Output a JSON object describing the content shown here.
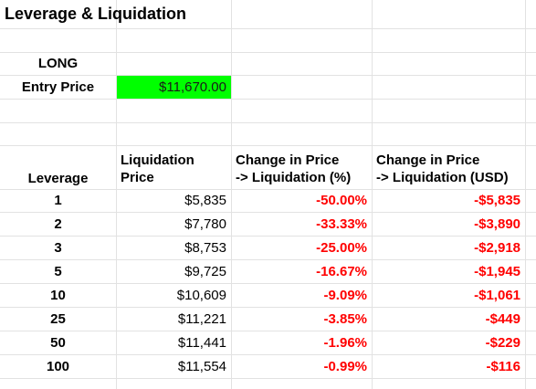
{
  "sheet": {
    "title": "Leverage & Liquidation",
    "position_label": "LONG",
    "entry_label": "Entry Price",
    "entry_value": "$11,670.00",
    "entry_highlight_color": "#00ff00",
    "negative_color": "#ff0000"
  },
  "headers": {
    "leverage": "Leverage",
    "liq_price_line1": "Liquidation",
    "liq_price_line2": "Price",
    "change_pct_line1": "Change in Price",
    "change_pct_line2": "-> Liquidation (%)",
    "change_usd_line1": "Change in Price",
    "change_usd_line2": "-> Liquidation (USD)"
  },
  "rows": [
    {
      "leverage": "1",
      "liq_price": "$5,835",
      "change_pct": "-50.00%",
      "change_usd": "-$5,835"
    },
    {
      "leverage": "2",
      "liq_price": "$7,780",
      "change_pct": "-33.33%",
      "change_usd": "-$3,890"
    },
    {
      "leverage": "3",
      "liq_price": "$8,753",
      "change_pct": "-25.00%",
      "change_usd": "-$2,918"
    },
    {
      "leverage": "5",
      "liq_price": "$9,725",
      "change_pct": "-16.67%",
      "change_usd": "-$1,945"
    },
    {
      "leverage": "10",
      "liq_price": "$10,609",
      "change_pct": "-9.09%",
      "change_usd": "-$1,061"
    },
    {
      "leverage": "25",
      "liq_price": "$11,221",
      "change_pct": "-3.85%",
      "change_usd": "-$449"
    },
    {
      "leverage": "50",
      "liq_price": "$11,441",
      "change_pct": "-1.96%",
      "change_usd": "-$229"
    },
    {
      "leverage": "100",
      "liq_price": "$11,554",
      "change_pct": "-0.99%",
      "change_usd": "-$116"
    }
  ]
}
